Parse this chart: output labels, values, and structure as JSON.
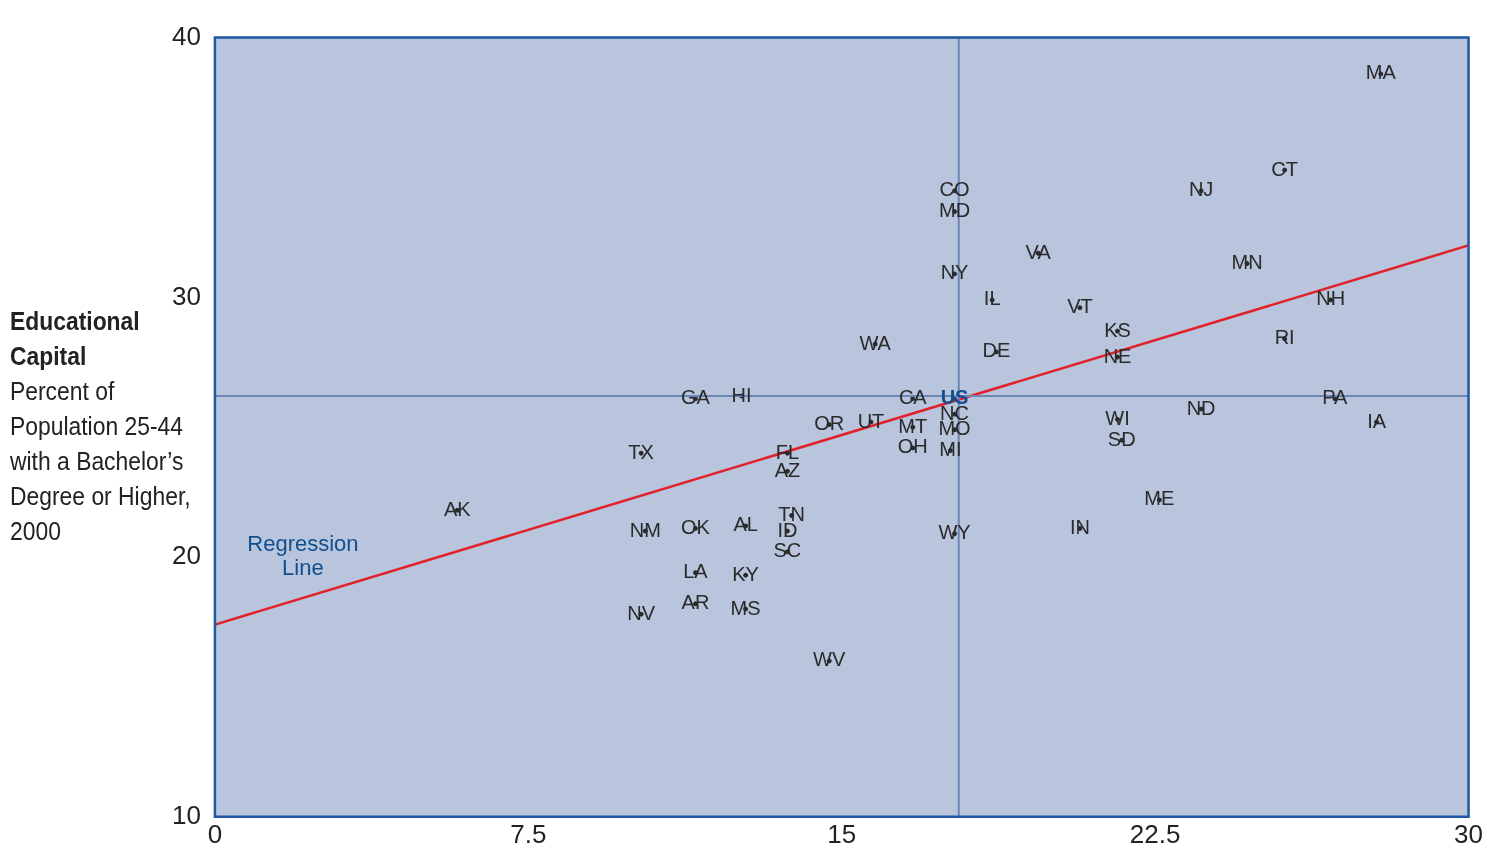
{
  "chart_data": {
    "type": "scatter",
    "ylabel": "Educational Capital",
    "subtitle": "Percent of Population 25-44 with a Bachelor’s Degree or Higher, 2000",
    "xlim": [
      0,
      30
    ],
    "xticks": [
      0,
      7.5,
      15,
      22.5,
      30
    ],
    "ylim": [
      10,
      40
    ],
    "yticks": [
      10,
      20,
      30,
      40
    ],
    "grid": false,
    "legend": false,
    "series": [
      {
        "type": "scatter",
        "marker": "circle",
        "color": "#2a2a2a",
        "x": [
          27.9,
          25.6,
          23.6,
          17.7,
          17.7,
          19.7,
          24.7,
          17.7,
          18.6,
          20.7,
          26.7,
          21.6,
          15.8,
          25.6,
          18.7,
          21.6,
          11.5,
          12.6,
          16.7,
          26.8,
          23.6,
          17.7,
          21.6,
          27.8,
          14.7,
          15.7,
          16.7,
          17.7,
          21.7,
          16.7,
          17.6,
          10.2,
          13.7,
          13.7,
          22.6,
          5.8,
          13.8,
          10.3,
          11.5,
          12.7,
          20.7,
          13.7,
          17.7,
          13.7,
          11.5,
          12.7,
          11.5,
          12.7,
          10.2,
          14.7
        ],
        "values": [
          38.6,
          34.9,
          34.1,
          34.1,
          33.3,
          31.7,
          31.3,
          30.9,
          29.9,
          29.6,
          29.9,
          28.7,
          28.2,
          28.4,
          27.9,
          27.7,
          26.1,
          26.2,
          26.1,
          26.1,
          25.7,
          25.5,
          25.3,
          25.2,
          25.1,
          25.2,
          25.0,
          24.9,
          24.5,
          24.2,
          24.1,
          24.0,
          24.0,
          23.3,
          22.2,
          21.8,
          21.6,
          21.0,
          21.1,
          21.2,
          21.1,
          21.0,
          20.9,
          20.2,
          19.4,
          19.3,
          18.2,
          18.0,
          17.8,
          16.0
        ],
        "value_labels": [
          "MA",
          "CT",
          "NJ",
          "CO",
          "MD",
          "VA",
          "MN",
          "NY",
          "IL",
          "VT",
          "NH",
          "KS",
          "WA",
          "RI",
          "DE",
          "NE",
          "GA",
          "HI",
          "CA",
          "PA",
          "ND",
          "NC",
          "WI",
          "IA",
          "OR",
          "UT",
          "MT",
          "MO",
          "SD",
          "OH",
          "MI",
          "TX",
          "FL",
          "AZ",
          "ME",
          "AK",
          "TN",
          "NM",
          "OK",
          "AL",
          "IN",
          "ID",
          "WY",
          "SC",
          "LA",
          "KY",
          "AR",
          "MS",
          "NV",
          "WV"
        ]
      },
      {
        "type": "scatter",
        "marker": "circle",
        "color": "#124f8f",
        "x": [
          17.7
        ],
        "values": [
          26.1
        ],
        "value_labels": [
          "US"
        ]
      },
      {
        "type": "line",
        "marker": "none",
        "color": "#e3202a",
        "x": [
          0,
          30
        ],
        "values": [
          17.4,
          32.0
        ]
      }
    ],
    "ref_lines": [
      {
        "axis": "x",
        "value": 17.8,
        "color": "#6e86b3"
      },
      {
        "axis": "y",
        "value": 26.2,
        "color": "#6e86b3"
      }
    ],
    "annotations": [
      "Regression Line"
    ]
  }
}
